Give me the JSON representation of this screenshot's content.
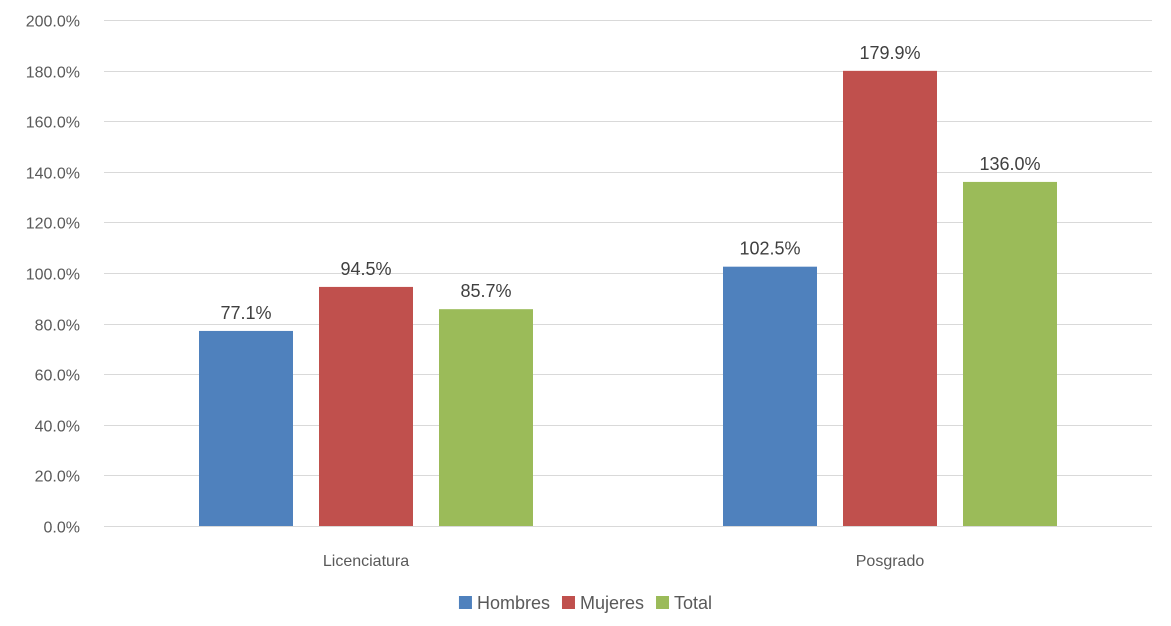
{
  "chart_data": {
    "type": "bar",
    "title": "",
    "xlabel": "",
    "ylabel": "",
    "categories": [
      "Licenciatura",
      "Posgrado"
    ],
    "series": [
      {
        "name": "Hombres",
        "color": "#4f81bd",
        "values": [
          77.1,
          102.5
        ],
        "labels": [
          "77.1%",
          "102.5%"
        ]
      },
      {
        "name": "Mujeres",
        "color": "#c0504d",
        "values": [
          94.5,
          179.9
        ],
        "labels": [
          "94.5%",
          "179.9%"
        ]
      },
      {
        "name": "Total",
        "color": "#9bbb59",
        "values": [
          85.7,
          136.0
        ],
        "labels": [
          "85.7%",
          "136.0%"
        ]
      }
    ],
    "ylim": [
      0,
      200
    ],
    "yticks": [
      0,
      20,
      40,
      60,
      80,
      100,
      120,
      140,
      160,
      180,
      200
    ],
    "ytick_labels": [
      "0.0%",
      "20.0%",
      "40.0%",
      "60.0%",
      "80.0%",
      "100.0%",
      "120.0%",
      "140.0%",
      "160.0%",
      "180.0%",
      "200.0%"
    ],
    "grid": true,
    "legend": "bottom"
  }
}
